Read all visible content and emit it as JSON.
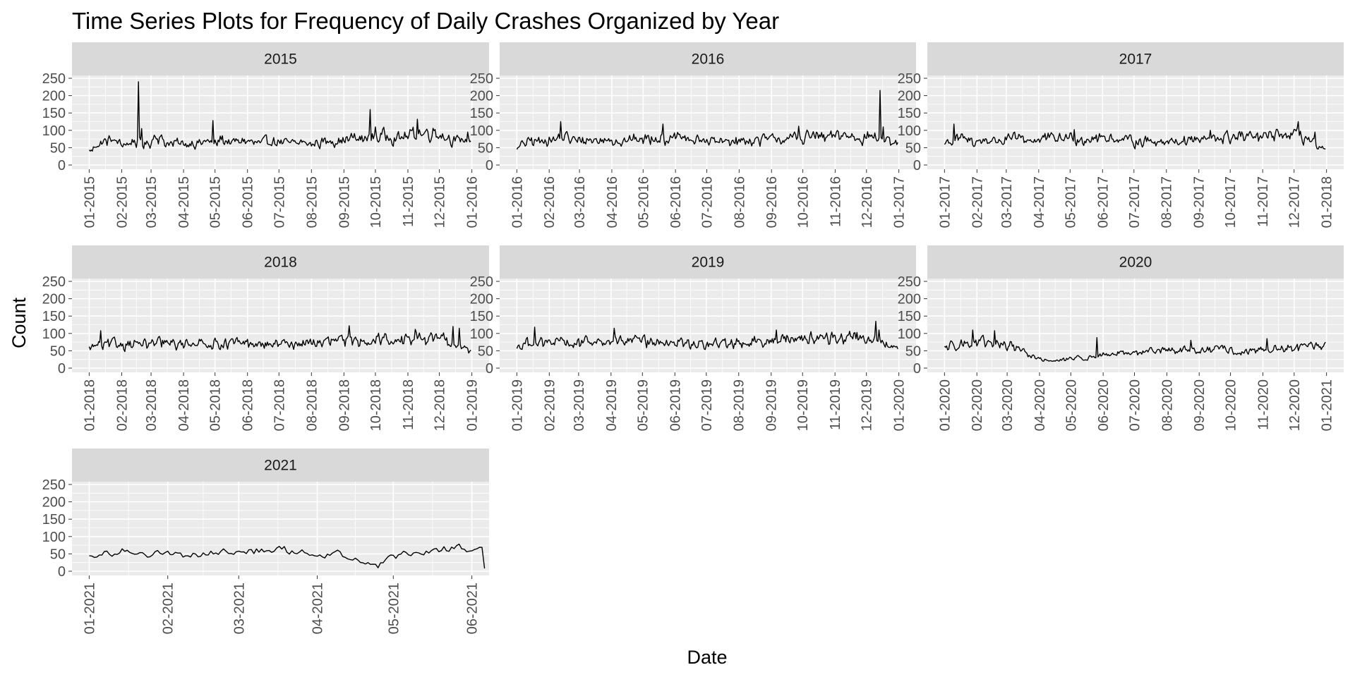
{
  "chart_data": {
    "type": "line",
    "title": "Time Series Plots for Frequency of Daily Crashes Organized by Year",
    "xlabel": "Date",
    "ylabel": "Count",
    "ylim": [
      0,
      250
    ],
    "y_ticks": [
      0,
      50,
      100,
      150,
      200,
      250
    ],
    "y_tick_labels": [
      "0",
      "50",
      "100",
      "150",
      "200",
      "250"
    ],
    "colors": {
      "line": "#000000",
      "panel": "#ebebeb",
      "grid": "#ffffff",
      "strip": "#d9d9d9",
      "tick_text": "#4d4d4d"
    },
    "panels": [
      {
        "year": "2015",
        "x_start": "2015-01-01",
        "x_end": "2015-12-31",
        "x_ticks": [
          "2015-01-01",
          "2015-02-01",
          "2015-03-01",
          "2015-04-01",
          "2015-05-01",
          "2015-06-01",
          "2015-07-01",
          "2015-08-01",
          "2015-09-01",
          "2015-10-01",
          "2015-11-01",
          "2015-12-01",
          "2016-01-01"
        ],
        "x_tick_labels": [
          "01-2015",
          "02-2015",
          "03-2015",
          "04-2015",
          "05-2015",
          "06-2015",
          "07-2015",
          "08-2015",
          "09-2015",
          "10-2015",
          "11-2015",
          "12-2015",
          "01-2016"
        ],
        "weekly_levels": [
          40,
          60,
          68,
          75,
          62,
          60,
          70,
          65,
          58,
          92,
          68,
          62,
          64,
          60,
          66,
          62,
          72,
          60,
          78,
          64,
          68,
          72,
          66,
          62,
          68,
          70,
          66,
          63,
          64,
          67,
          60,
          65,
          68,
          72,
          70,
          74,
          80,
          72,
          84,
          80,
          88,
          83,
          78,
          84,
          90,
          95,
          92,
          98,
          86,
          78,
          70,
          72
        ],
        "spikes": [
          [
            "2015-02-17",
            240
          ],
          [
            "2015-02-20",
            105
          ],
          [
            "2015-04-29",
            128
          ],
          [
            "2015-09-26",
            160
          ],
          [
            "2015-10-01",
            110
          ],
          [
            "2015-11-10",
            132
          ],
          [
            "2015-12-28",
            95
          ]
        ]
      },
      {
        "year": "2016",
        "x_start": "2016-01-01",
        "x_end": "2016-12-31",
        "x_ticks": [
          "2016-01-01",
          "2016-02-01",
          "2016-03-01",
          "2016-04-01",
          "2016-05-01",
          "2016-06-01",
          "2016-07-01",
          "2016-08-01",
          "2016-09-01",
          "2016-10-01",
          "2016-11-01",
          "2016-12-01",
          "2017-01-01"
        ],
        "x_tick_labels": [
          "01-2016",
          "02-2016",
          "03-2016",
          "04-2016",
          "05-2016",
          "06-2016",
          "07-2016",
          "08-2016",
          "09-2016",
          "10-2016",
          "11-2016",
          "12-2016",
          "01-2017"
        ],
        "weekly_levels": [
          50,
          65,
          70,
          68,
          75,
          72,
          85,
          78,
          70,
          72,
          74,
          70,
          72,
          76,
          68,
          70,
          78,
          72,
          80,
          82,
          76,
          74,
          80,
          76,
          72,
          70,
          74,
          68,
          66,
          70,
          72,
          68,
          74,
          70,
          76,
          74,
          78,
          72,
          82,
          80,
          86,
          84,
          78,
          82,
          88,
          86,
          84,
          80,
          86,
          82,
          78,
          60
        ],
        "spikes": [
          [
            "2016-02-12",
            125
          ],
          [
            "2016-05-20",
            118
          ],
          [
            "2016-09-27",
            112
          ],
          [
            "2016-12-14",
            215
          ],
          [
            "2016-12-17",
            110
          ],
          [
            "2016-12-31",
            65
          ]
        ]
      },
      {
        "year": "2017",
        "x_start": "2017-01-01",
        "x_end": "2017-12-31",
        "x_ticks": [
          "2017-01-01",
          "2017-02-01",
          "2017-03-01",
          "2017-04-01",
          "2017-05-01",
          "2017-06-01",
          "2017-07-01",
          "2017-08-01",
          "2017-09-01",
          "2017-10-01",
          "2017-11-01",
          "2017-12-01",
          "2018-01-01"
        ],
        "x_tick_labels": [
          "01-2017",
          "02-2017",
          "03-2017",
          "04-2017",
          "05-2017",
          "06-2017",
          "07-2017",
          "08-2017",
          "09-2017",
          "10-2017",
          "11-2017",
          "12-2017",
          "01-2018"
        ],
        "weekly_levels": [
          65,
          70,
          78,
          72,
          68,
          70,
          74,
          70,
          72,
          76,
          78,
          74,
          72,
          76,
          80,
          74,
          78,
          82,
          76,
          74,
          80,
          78,
          82,
          76,
          74,
          72,
          70,
          68,
          72,
          70,
          68,
          72,
          70,
          74,
          76,
          72,
          78,
          74,
          82,
          80,
          84,
          82,
          78,
          80,
          84,
          86,
          88,
          84,
          90,
          80,
          70,
          45
        ],
        "spikes": [
          [
            "2017-01-10",
            118
          ],
          [
            "2017-05-05",
            102
          ],
          [
            "2017-09-12",
            100
          ],
          [
            "2017-12-05",
            125
          ],
          [
            "2017-12-21",
            95
          ]
        ]
      },
      {
        "year": "2018",
        "x_start": "2018-01-01",
        "x_end": "2018-12-31",
        "x_ticks": [
          "2018-01-01",
          "2018-02-01",
          "2018-03-01",
          "2018-04-01",
          "2018-05-01",
          "2018-06-01",
          "2018-07-01",
          "2018-08-01",
          "2018-09-01",
          "2018-10-01",
          "2018-11-01",
          "2018-12-01",
          "2019-01-01"
        ],
        "x_tick_labels": [
          "01-2018",
          "02-2018",
          "03-2018",
          "04-2018",
          "05-2018",
          "06-2018",
          "07-2018",
          "08-2018",
          "09-2018",
          "10-2018",
          "11-2018",
          "12-2018",
          "01-2019"
        ],
        "weekly_levels": [
          55,
          70,
          65,
          72,
          68,
          70,
          74,
          70,
          68,
          72,
          74,
          70,
          68,
          72,
          76,
          72,
          70,
          74,
          72,
          70,
          74,
          72,
          70,
          68,
          66,
          70,
          68,
          72,
          70,
          74,
          72,
          76,
          74,
          78,
          80,
          76,
          82,
          80,
          84,
          82,
          86,
          84,
          80,
          84,
          86,
          88,
          84,
          86,
          88,
          80,
          70,
          55
        ],
        "spikes": [
          [
            "2018-01-12",
            108
          ],
          [
            "2018-09-06",
            122
          ],
          [
            "2018-11-08",
            112
          ],
          [
            "2018-12-14",
            120
          ],
          [
            "2018-12-20",
            115
          ]
        ]
      },
      {
        "year": "2019",
        "x_start": "2019-01-01",
        "x_end": "2019-12-31",
        "x_ticks": [
          "2019-01-01",
          "2019-02-01",
          "2019-03-01",
          "2019-04-01",
          "2019-05-01",
          "2019-06-01",
          "2019-07-01",
          "2019-08-01",
          "2019-09-01",
          "2019-10-01",
          "2019-11-01",
          "2019-12-01",
          "2020-01-01"
        ],
        "x_tick_labels": [
          "01-2019",
          "02-2019",
          "03-2019",
          "04-2019",
          "05-2019",
          "06-2019",
          "07-2019",
          "08-2019",
          "09-2019",
          "10-2019",
          "11-2019",
          "12-2019",
          "01-2020"
        ],
        "weekly_levels": [
          60,
          72,
          78,
          74,
          70,
          76,
          74,
          72,
          70,
          74,
          78,
          76,
          74,
          80,
          78,
          76,
          80,
          78,
          74,
          72,
          76,
          78,
          74,
          70,
          68,
          70,
          66,
          72,
          70,
          74,
          76,
          72,
          78,
          80,
          82,
          80,
          84,
          86,
          88,
          86,
          90,
          88,
          86,
          90,
          88,
          92,
          94,
          88,
          86,
          80,
          72,
          60
        ],
        "spikes": [
          [
            "2019-01-18",
            118
          ],
          [
            "2019-04-04",
            115
          ],
          [
            "2019-09-06",
            110
          ],
          [
            "2019-12-10",
            135
          ],
          [
            "2019-12-13",
            110
          ]
        ]
      },
      {
        "year": "2020",
        "x_start": "2020-01-01",
        "x_end": "2020-12-31",
        "x_ticks": [
          "2020-01-01",
          "2020-02-01",
          "2020-03-01",
          "2020-04-01",
          "2020-05-01",
          "2020-06-01",
          "2020-07-01",
          "2020-08-01",
          "2020-09-01",
          "2020-10-01",
          "2020-11-01",
          "2020-12-01",
          "2021-01-01"
        ],
        "x_tick_labels": [
          "01-2020",
          "02-2020",
          "03-2020",
          "04-2020",
          "05-2020",
          "06-2020",
          "07-2020",
          "08-2020",
          "09-2020",
          "10-2020",
          "11-2020",
          "12-2020",
          "01-2021"
        ],
        "weekly_levels": [
          60,
          70,
          74,
          72,
          68,
          74,
          72,
          70,
          68,
          66,
          60,
          45,
          32,
          26,
          22,
          20,
          24,
          28,
          30,
          26,
          32,
          36,
          40,
          42,
          46,
          44,
          48,
          46,
          50,
          48,
          52,
          50,
          54,
          52,
          55,
          50,
          52,
          54,
          56,
          50,
          46,
          44,
          48,
          52,
          54,
          58,
          56,
          60,
          58,
          62,
          60,
          65
        ],
        "spikes": [
          [
            "2020-01-28",
            110
          ],
          [
            "2020-02-18",
            108
          ],
          [
            "2020-05-26",
            88
          ],
          [
            "2020-08-24",
            80
          ],
          [
            "2020-11-05",
            85
          ],
          [
            "2020-12-31",
            75
          ]
        ]
      },
      {
        "year": "2021",
        "x_start": "2021-01-01",
        "x_end": "2021-06-06",
        "x_ticks": [
          "2021-01-01",
          "2021-02-01",
          "2021-03-01",
          "2021-04-01",
          "2021-05-01",
          "2021-06-01"
        ],
        "x_tick_labels": [
          "01-2021",
          "02-2021",
          "03-2021",
          "04-2021",
          "05-2021",
          "06-2021"
        ],
        "weekly_levels": [
          38,
          52,
          58,
          55,
          52,
          50,
          48,
          52,
          56,
          60,
          58,
          62,
          56,
          50,
          52,
          32,
          18,
          42,
          52,
          58,
          62,
          64,
          66,
          62,
          58,
          52
        ],
        "spikes": [
          [
            "2021-04-25",
            10
          ],
          [
            "2021-05-27",
            78
          ],
          [
            "2021-06-06",
            8
          ]
        ]
      }
    ]
  }
}
